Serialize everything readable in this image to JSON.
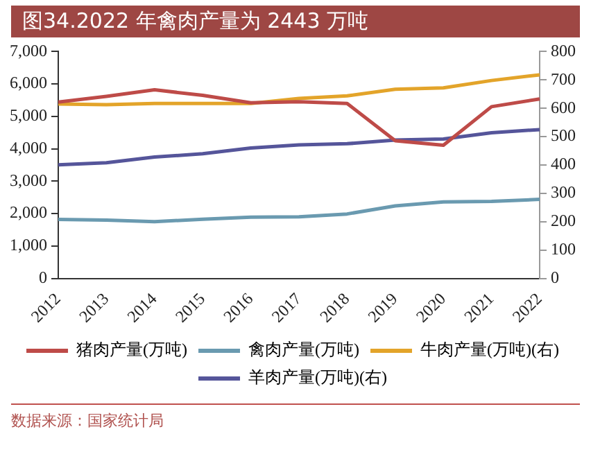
{
  "chart_data": {
    "type": "line",
    "title": "图34.2022 年禽肉产量为 2443 万吨",
    "categories": [
      "2012",
      "2013",
      "2014",
      "2015",
      "2016",
      "2017",
      "2018",
      "2019",
      "2020",
      "2021",
      "2022"
    ],
    "series": [
      {
        "name": "猪肉产量(万吨)",
        "color": "#be4b48",
        "values": [
          5440,
          5620,
          5820,
          5650,
          5420,
          5450,
          5400,
          4250,
          4110,
          5300,
          5540
        ]
      },
      {
        "name": "禽肉产量(万吨)",
        "color": "#6a9ab0",
        "values": [
          1820,
          1800,
          1750,
          1830,
          1890,
          1900,
          1990,
          2240,
          2360,
          2380,
          2440
        ]
      },
      {
        "name": "牛肉产量(万吨)(右)",
        "color": "#e3a42a",
        "axis": "y2",
        "values": [
          615,
          613,
          617,
          617,
          617,
          635,
          644,
          667,
          672,
          698,
          718
        ]
      },
      {
        "name": "羊肉产量(万吨)(右)",
        "color": "#55559a",
        "axis": "y2",
        "values": [
          401,
          408,
          428,
          440,
          460,
          471,
          475,
          488,
          492,
          514,
          525
        ]
      }
    ],
    "ylim": [
      0,
      7000
    ],
    "yticks": [
      {
        "value": 0,
        "label": "0"
      },
      {
        "value": 1000,
        "label": "1,000"
      },
      {
        "value": 2000,
        "label": "2,000"
      },
      {
        "value": 3000,
        "label": "3,000"
      },
      {
        "value": 4000,
        "label": "4,000"
      },
      {
        "value": 5000,
        "label": "5,000"
      },
      {
        "value": 6000,
        "label": "6,000"
      },
      {
        "value": 7000,
        "label": "7,000"
      }
    ],
    "y2lim": [
      0,
      800
    ],
    "y2ticks": [
      0,
      100,
      200,
      300,
      400,
      500,
      600,
      700,
      800
    ],
    "grid": false,
    "legend": "bottom",
    "marker": "none",
    "line_style": "solid",
    "annotations": [
      "数据来源：国家统计局"
    ]
  }
}
